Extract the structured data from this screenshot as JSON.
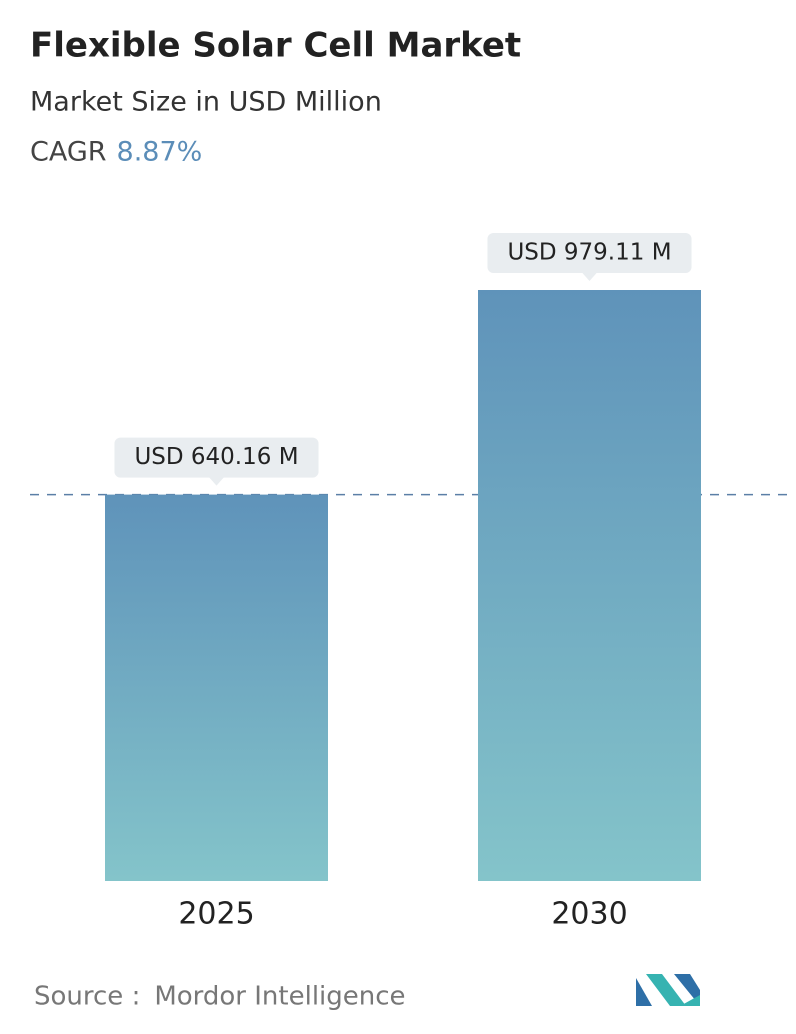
{
  "chart_data": {
    "type": "bar",
    "title": "Flexible Solar Cell Market",
    "subtitle": "Market Size in USD Million",
    "cagr_label": "CAGR",
    "cagr_value": "8.87%",
    "categories": [
      "2025",
      "2030"
    ],
    "values": [
      640.16,
      979.11
    ],
    "value_labels": [
      "USD 640.16 M",
      "USD 979.11 M"
    ],
    "color_top": "#5f93ba",
    "color_bottom": "#84c4ca",
    "source_label": "Source :",
    "source": "Mordor Intelligence"
  }
}
